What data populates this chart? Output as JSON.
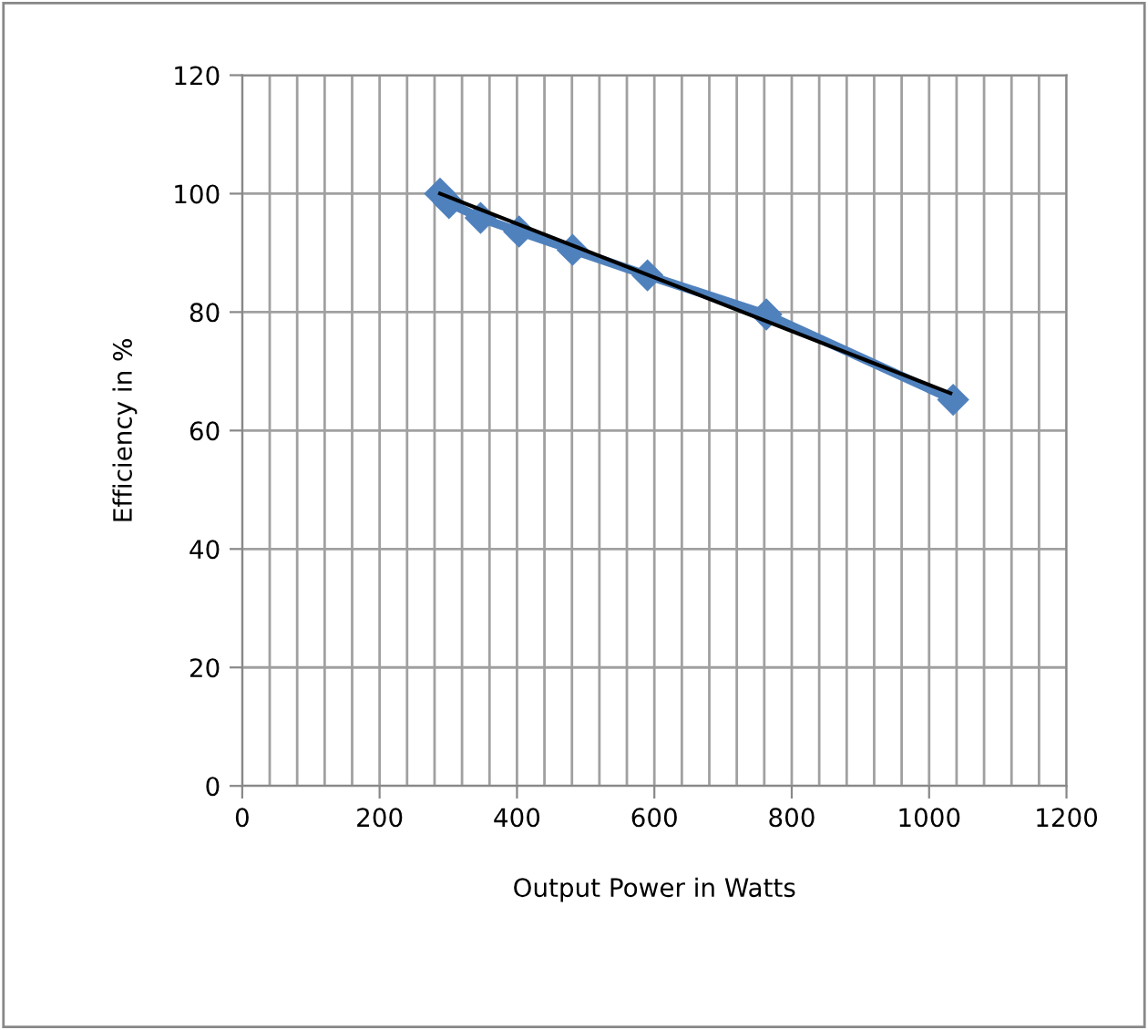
{
  "chart_data": {
    "type": "line",
    "xlabel": "Output Power in Watts",
    "ylabel": "Efficiency in %",
    "xlim": [
      0,
      1200
    ],
    "ylim": [
      0,
      120
    ],
    "xticks": [
      0,
      {
        "value": 40,
        "label": null
      },
      {
        "value": 80,
        "label": null
      },
      {
        "value": 120,
        "label": null
      },
      {
        "value": 160,
        "label": null
      },
      200,
      {
        "value": 240,
        "label": null
      },
      {
        "value": 280,
        "label": null
      },
      {
        "value": 320,
        "label": null
      },
      {
        "value": 360,
        "label": null
      },
      400,
      {
        "value": 440,
        "label": null
      },
      {
        "value": 480,
        "label": null
      },
      {
        "value": 520,
        "label": null
      },
      {
        "value": 560,
        "label": null
      },
      600,
      {
        "value": 640,
        "label": null
      },
      {
        "value": 680,
        "label": null
      },
      {
        "value": 720,
        "label": null
      },
      {
        "value": 760,
        "label": null
      },
      800,
      {
        "value": 840,
        "label": null
      },
      {
        "value": 880,
        "label": null
      },
      {
        "value": 920,
        "label": null
      },
      {
        "value": 960,
        "label": null
      },
      1000,
      {
        "value": 1040,
        "label": null
      },
      {
        "value": 1080,
        "label": null
      },
      {
        "value": 1120,
        "label": null
      },
      {
        "value": 1160,
        "label": null
      },
      1200
    ],
    "yticks": [
      0,
      20,
      40,
      60,
      80,
      100,
      120
    ],
    "grid": true,
    "legend": false,
    "series": [
      {
        "color": "#4f81bd",
        "marker": "diamond",
        "line_style": "solid",
        "x": [
          288,
          301,
          347,
          403,
          481,
          590,
          763,
          1035
        ],
        "values": [
          100,
          98.4,
          95.9,
          93.6,
          90.5,
          86.2,
          79.6,
          65.2
        ]
      },
      {
        "type": "line",
        "color": "#000000",
        "marker": "none",
        "line_style": "solid",
        "x": [
          288,
          1031
        ],
        "values": [
          100,
          66.3
        ]
      }
    ]
  }
}
